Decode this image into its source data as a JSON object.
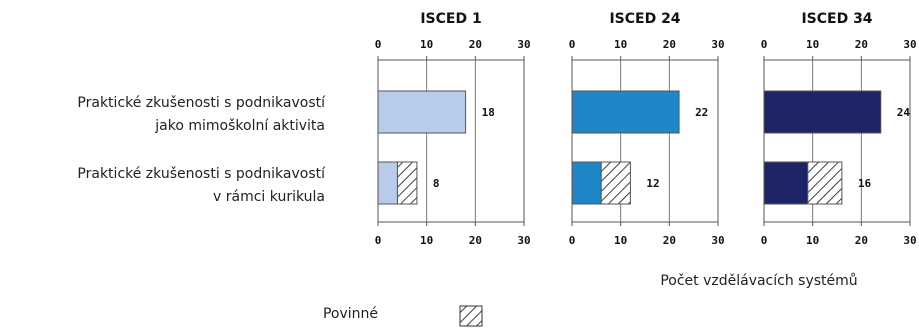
{
  "chart_data": {
    "type": "bar",
    "orientation": "horizontal",
    "categories": [
      [
        "Praktické zkušenosti s podnikavostí",
        "jako mimoškolní aktivita"
      ],
      [
        "Praktické zkušenosti s podnikavostí",
        "v rámci kurikula"
      ]
    ],
    "panels": [
      {
        "title": "ISCED 1",
        "color": "#b8cbea",
        "values": [
          18,
          8
        ],
        "compulsory": [
          0,
          4
        ]
      },
      {
        "title": "ISCED 24",
        "color": "#1f86c8",
        "values": [
          22,
          12
        ],
        "compulsory": [
          0,
          6
        ]
      },
      {
        "title": "ISCED 34",
        "color": "#1e2566",
        "values": [
          24,
          16
        ],
        "compulsory": [
          0,
          7
        ]
      }
    ],
    "xlim": [
      0,
      30
    ],
    "ticks": [
      0,
      10,
      20,
      30
    ],
    "tick_labels": [
      "0",
      "10",
      "20",
      "30"
    ],
    "xlabel": "Počet vzdělávacích systémů",
    "legend": [
      {
        "label": "Povinné",
        "pattern": "hatch"
      }
    ],
    "grid": true
  }
}
